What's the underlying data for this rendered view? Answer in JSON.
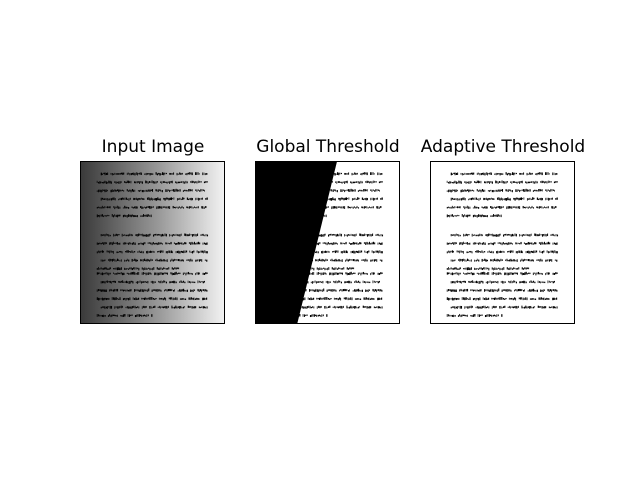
{
  "panels": [
    {
      "title": "Input Image",
      "image": "gradient-document-image"
    },
    {
      "title": "Global Threshold",
      "image": "global-threshold-image"
    },
    {
      "title": "Adaptive Threshold",
      "image": "adaptive-threshold-image"
    }
  ],
  "colors": {
    "ink": "#000000",
    "paper": "#ffffff",
    "gradient_dark": "#3a3a3a",
    "gradient_light": "#f2f2f2"
  }
}
